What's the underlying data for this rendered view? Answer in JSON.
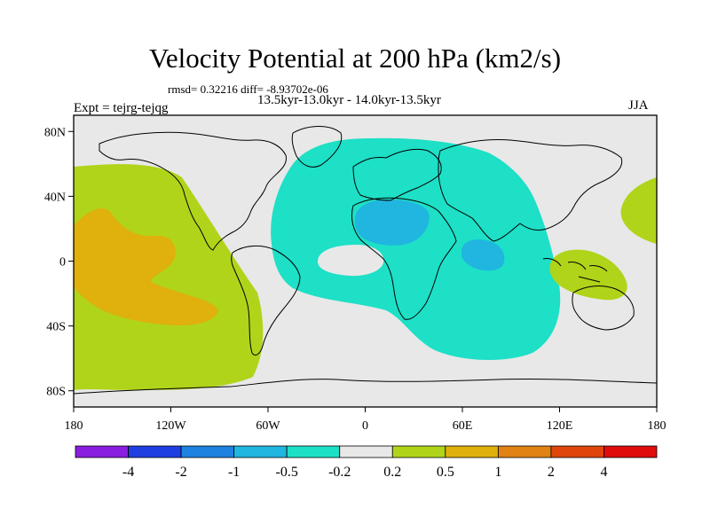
{
  "title": "Velocity Potential at 200 hPa (km2/s)",
  "stats_line": "rmsd= 0.32216  diff= -8.93702e-06",
  "periods_line": "13.5kyr-13.0kyr - 14.0kyr-13.5kyr",
  "expt_line": "Expt = tejrg-tejqg",
  "season": "JJA",
  "map": {
    "projection": "cylindrical equidistant",
    "lon_range": [
      -180,
      180
    ],
    "lat_range": [
      -90,
      90
    ],
    "lat_ticks": [
      {
        "value": 80,
        "label": "80N"
      },
      {
        "value": 40,
        "label": "40N"
      },
      {
        "value": 0,
        "label": "0"
      },
      {
        "value": -40,
        "label": "40S"
      },
      {
        "value": -80,
        "label": "80S"
      }
    ],
    "lon_ticks": [
      {
        "value": -180,
        "label": "180"
      },
      {
        "value": -120,
        "label": "120W"
      },
      {
        "value": -60,
        "label": "60W"
      },
      {
        "value": 0,
        "label": "0"
      },
      {
        "value": 60,
        "label": "60E"
      },
      {
        "value": 120,
        "label": "120E"
      },
      {
        "value": 180,
        "label": "180"
      }
    ]
  },
  "colorbar": {
    "labels": [
      "-4",
      "-2",
      "-1",
      "-0.5",
      "-0.2",
      "0.2",
      "0.5",
      "1",
      "2",
      "4"
    ],
    "colors": [
      "#8a1ee0",
      "#1f3fe0",
      "#1d82e0",
      "#20b6e0",
      "#1de0c6",
      "#e8e8e8",
      "#b0d41a",
      "#e0b00c",
      "#e08214",
      "#e0460c",
      "#e00c0c"
    ]
  },
  "colors": {
    "neutral": "#e8e8e8",
    "light_green": "#b0d41a",
    "orange": "#e0b00c",
    "cyan": "#1de0c6",
    "light_blue": "#20b6e0"
  }
}
